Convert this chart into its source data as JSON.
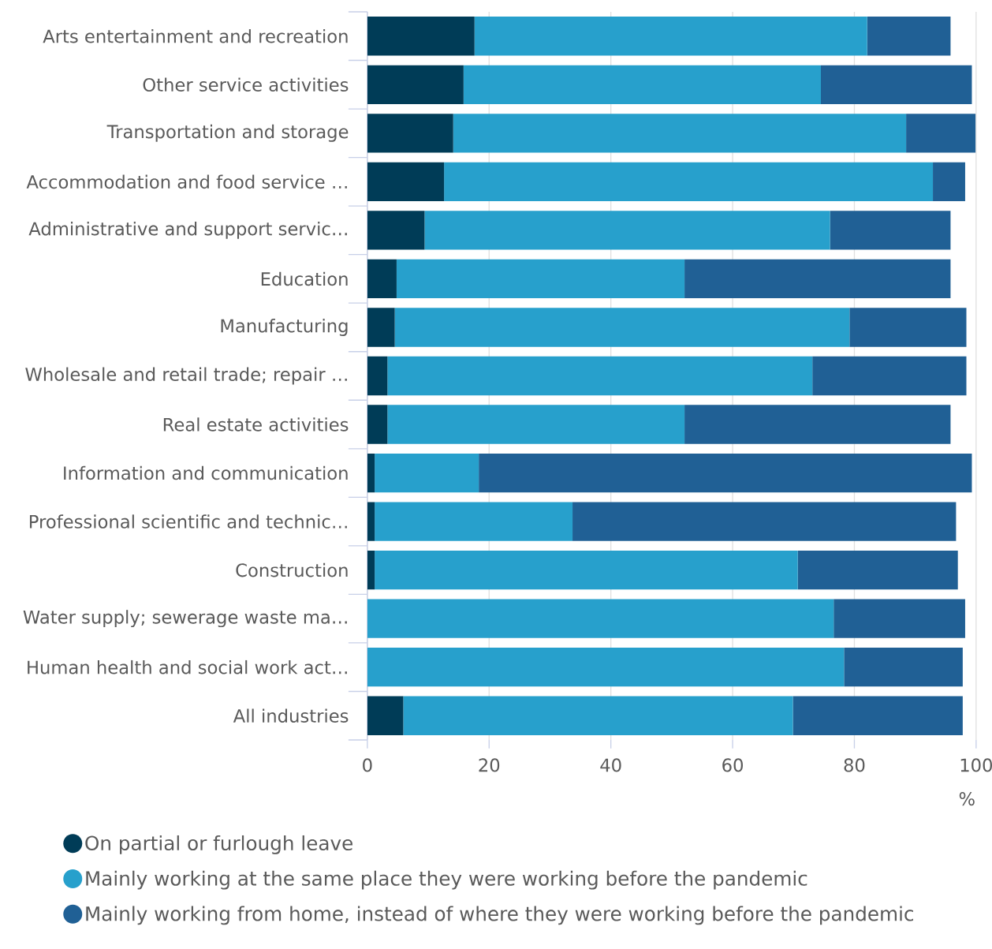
{
  "chart_data": {
    "type": "bar",
    "orientation": "horizontal",
    "stacked": true,
    "xlabel": "%",
    "categories": [
      "Arts entertainment and recreation",
      "Other service activities",
      "Transportation and storage",
      "Accommodation and food service …",
      "Administrative and support servic…",
      "Education",
      "Manufacturing",
      "Wholesale and retail trade; repair …",
      "Real estate activities",
      "Information and communication",
      "Professional scientific and technic…",
      "Construction",
      "Water supply; sewerage waste ma…",
      "Human health and social work act…",
      "All industries"
    ],
    "series": [
      {
        "name": "On partial or furlough leave",
        "color": "#003c57",
        "values": [
          17.6,
          15.8,
          14.1,
          12.6,
          9.4,
          4.8,
          4.5,
          3.3,
          3.3,
          1.2,
          1.2,
          1.2,
          0,
          0,
          5.9
        ]
      },
      {
        "name": "Mainly working at the same place they were working before the pandemic",
        "color": "#27a0cc",
        "values": [
          64.5,
          58.7,
          74.4,
          80.3,
          66.6,
          47.3,
          74.7,
          69.8,
          48.8,
          17.1,
          32.5,
          69.5,
          76.6,
          78.3,
          64.0
        ]
      },
      {
        "name": "Mainly working from home, instead of where they were working before the pandemic",
        "color": "#206095",
        "values": [
          13.7,
          24.8,
          11.4,
          5.3,
          19.8,
          43.7,
          19.2,
          25.3,
          43.7,
          81.0,
          63.0,
          26.3,
          21.6,
          19.5,
          27.9
        ]
      }
    ],
    "xlim": [
      0,
      100
    ],
    "xticks": [
      0,
      20,
      40,
      60,
      80,
      100
    ],
    "grid": "x",
    "legend": "bottom"
  }
}
